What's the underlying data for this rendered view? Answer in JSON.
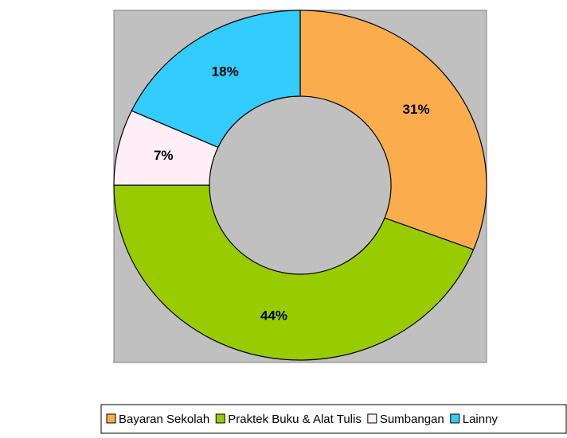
{
  "chart_data": {
    "type": "donut",
    "categories": [
      "Bayaran Sekolah",
      "Praktek Buku & Alat Tulis",
      "Sumbangan",
      "Lainny"
    ],
    "values": [
      31,
      44,
      7,
      18
    ],
    "value_labels": [
      "31%",
      "44%",
      "7%",
      "18%"
    ],
    "colors": [
      "#fbad4d",
      "#99cc00",
      "#ffeef6",
      "#33ccff"
    ],
    "legend": "bottom"
  }
}
